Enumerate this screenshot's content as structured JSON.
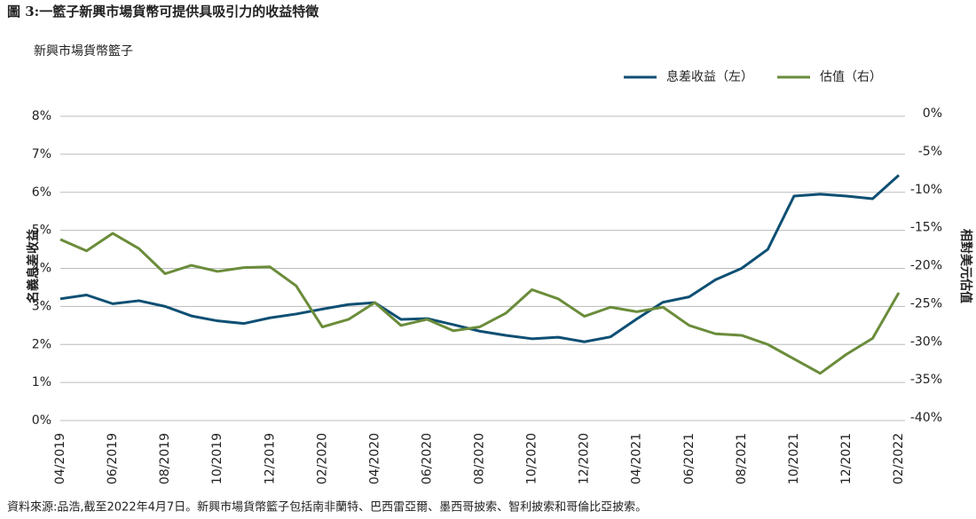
{
  "chart_data": {
    "type": "line",
    "title": "圖 3:一籃子新興市場貨幣可提供具吸引力的收益特徵",
    "subtitle": "新興市場貨幣籃子",
    "y_label": "名義息差收益",
    "y2_label": "相對美元估值",
    "source": "資料來源:品浩,截至2022年4月7日。新興市場貨幣籃子包括南非蘭特、巴西雷亞爾、墨西哥披索、智利披索和哥倫比亞披索。",
    "categories": [
      "04/2019",
      null,
      "06/2019",
      null,
      "08/2019",
      null,
      "10/2019",
      null,
      "12/2019",
      null,
      "02/2020",
      null,
      "04/2020",
      null,
      "06/2020",
      null,
      "08/2020",
      null,
      "10/2020",
      null,
      "12/2020",
      null,
      "04/2021",
      null,
      "06/2021",
      null,
      "08/2021",
      null,
      "10/2021",
      null,
      "12/2021",
      null,
      "02/2022"
    ],
    "series": [
      {
        "name": "息差收益（左）",
        "color": "#0d4f73",
        "values": [
          3.2,
          3.3,
          3.07,
          3.15,
          3.0,
          2.75,
          2.62,
          2.55,
          2.7,
          2.8,
          2.93,
          3.05,
          3.1,
          2.66,
          2.68,
          2.52,
          2.35,
          2.24,
          2.15,
          2.19,
          2.07,
          2.2,
          2.67,
          3.11,
          3.25,
          3.7,
          4.0,
          4.5,
          5.9,
          5.95,
          5.9,
          5.83,
          6.45
        ]
      },
      {
        "name": "估值（右）",
        "color": "#6a8c3a",
        "axis": "y2",
        "values": [
          -16.2,
          -17.7,
          -15.4,
          -17.4,
          -20.7,
          -19.6,
          -20.4,
          -19.9,
          -19.8,
          -22.3,
          -27.7,
          -26.7,
          -24.5,
          -27.5,
          -26.7,
          -28.2,
          -27.7,
          -25.9,
          -22.8,
          -24.0,
          -26.3,
          -25.1,
          -25.7,
          -25.1,
          -27.5,
          -28.6,
          -28.8,
          -30.0,
          -31.9,
          -33.8,
          -31.3,
          -29.2,
          -23.2
        ]
      }
    ],
    "ylim": [
      0,
      8
    ],
    "yticks": [
      {
        "value": 0,
        "label": "0%"
      },
      {
        "value": 1,
        "label": "1%"
      },
      {
        "value": 2,
        "label": "2%"
      },
      {
        "value": 3,
        "label": "3%"
      },
      {
        "value": 4,
        "label": "4%"
      },
      {
        "value": 5,
        "label": "5%"
      },
      {
        "value": 6,
        "label": "6%"
      },
      {
        "value": 7,
        "label": "7%"
      },
      {
        "value": 8,
        "label": "8%"
      }
    ],
    "y2lim": [
      -40,
      0
    ],
    "y2ticks": [
      {
        "value": 0,
        "label": "0%"
      },
      {
        "value": -5,
        "label": "-5%"
      },
      {
        "value": -10,
        "label": "-10%"
      },
      {
        "value": -15,
        "label": "-15%"
      },
      {
        "value": -20,
        "label": "-20%"
      },
      {
        "value": -25,
        "label": "-25%"
      },
      {
        "value": -30,
        "label": "-30%"
      },
      {
        "value": -35,
        "label": "-35%"
      },
      {
        "value": -40,
        "label": "-40%"
      }
    ],
    "grid": true,
    "legend": "top-right"
  }
}
